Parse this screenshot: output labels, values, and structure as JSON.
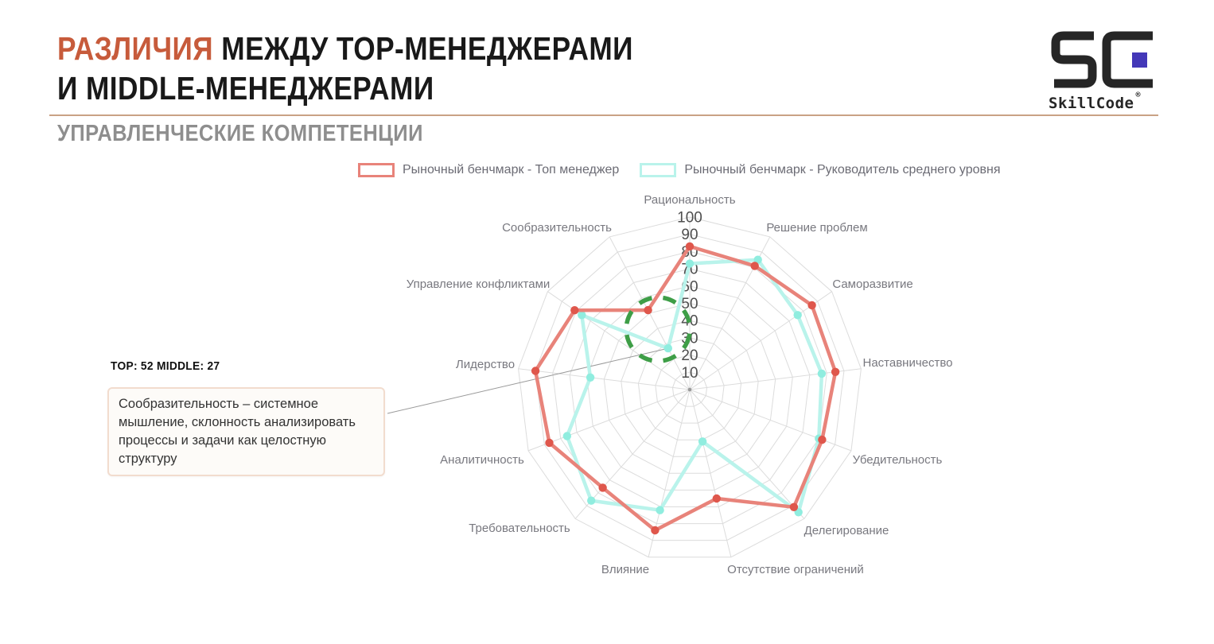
{
  "header": {
    "title_accent": "РАЗЛИЧИЯ",
    "title_rest": " МЕЖДУ TOP-МЕНЕДЖЕРАМИ",
    "title_line2": "И MIDDLE-МЕНЕДЖЕРАМИ",
    "subtitle": "УПРАВЛЕНЧЕСКИЕ КОМПЕТЕНЦИИ",
    "logo": {
      "brand": "SkillCode",
      "registered": "®"
    }
  },
  "legend": [
    {
      "label": "Рыночный бенчмарк - Топ менеджер"
    },
    {
      "label": "Рыночный бенчмарк - Руководитель среднего уровня"
    }
  ],
  "annotation": {
    "stats": "TOP: 52 MIDDLE: 27",
    "text": "Сообразительность – системное мышление, склонность анализировать процессы и задачи как целостную структуру"
  },
  "chart_data": {
    "type": "radar",
    "title": "Управленческие компетенции — различия между топ- и middle-менеджерами",
    "categories": [
      "Рациональность",
      "Решение проблем",
      "Саморазвитие",
      "Наставничество",
      "Убедительность",
      "Делегирование",
      "Отсутствие ограничений",
      "Влияние",
      "Требовательность",
      "Аналитичность",
      "Лидерство",
      "Управление конфликтами",
      "Сообразительность"
    ],
    "series": [
      {
        "name": "Рыночный бенчмарк - Топ менеджер",
        "color": "#e8837a",
        "point_color": "#df574c",
        "values": [
          83,
          81,
          86,
          85,
          82,
          91,
          65,
          84,
          76,
          87,
          90,
          81,
          52
        ]
      },
      {
        "name": "Рыночный бенчмарк - Руководитель среднего уровня",
        "color": "#b9f3eb",
        "point_color": "#90eddf",
        "values": [
          73,
          85,
          76,
          77,
          80,
          95,
          31,
          72,
          86,
          76,
          58,
          76,
          27
        ]
      }
    ],
    "ticks": [
      10,
      20,
      30,
      40,
      50,
      60,
      70,
      80,
      90,
      100
    ],
    "rmax": 100,
    "grid": true,
    "legend_position": "top",
    "highlight": {
      "category": "Сообразительность",
      "top": 52,
      "middle": 27,
      "marker": "green-dashed-circle"
    },
    "colors": {
      "grid": "#dcdcdc",
      "tick_text": "#4e4e4e",
      "label_text": "#78787f",
      "highlight_circle": "#3e9e47",
      "connector": "#9a9a9a"
    }
  }
}
